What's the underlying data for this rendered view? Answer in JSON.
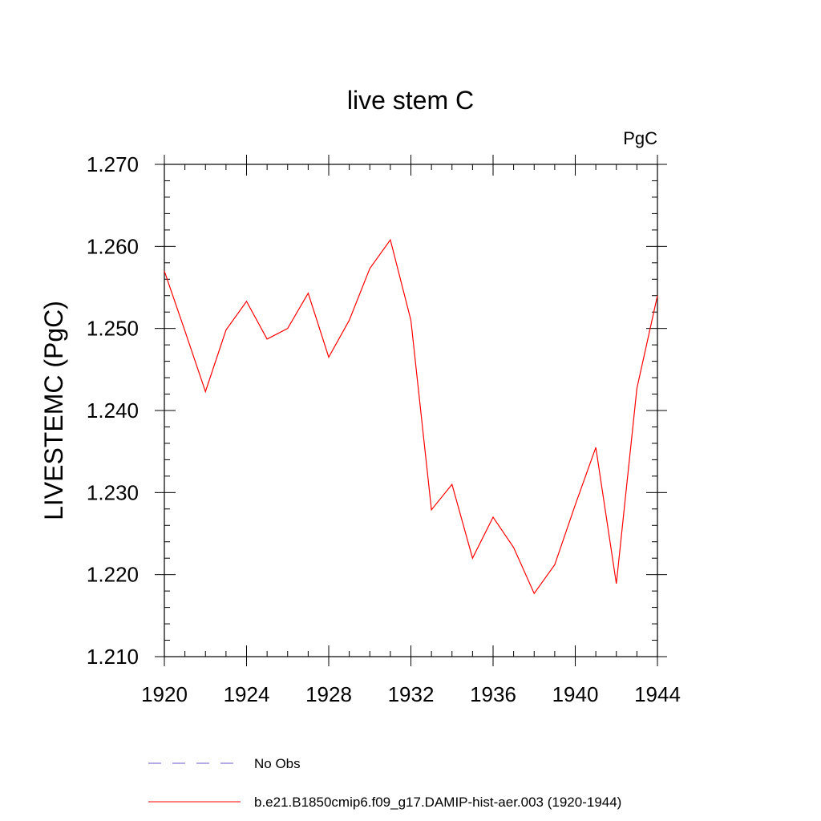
{
  "chart_data": {
    "type": "line",
    "title": "live stem C",
    "units_label": "PgC",
    "xlabel": "",
    "ylabel": "LIVESTEMC  (PgC)",
    "xlim": [
      1920,
      1944
    ],
    "ylim": [
      1.21,
      1.27
    ],
    "x_ticks": [
      "1920",
      "1924",
      "1928",
      "1932",
      "1936",
      "1940",
      "1944"
    ],
    "y_ticks": [
      "1.210",
      "1.220",
      "1.230",
      "1.240",
      "1.250",
      "1.260",
      "1.270"
    ],
    "grid": false,
    "legend_position": "bottom",
    "legend": [
      {
        "label": "No Obs",
        "style": "dashed",
        "color": "#6a5acd"
      },
      {
        "label": "b.e21.B1850cmip6.f09_g17.DAMIP-hist-aer.003 (1920-1944)",
        "style": "solid",
        "color": "#ff0000"
      }
    ],
    "series": [
      {
        "color": "#ff0000",
        "x": [
          1920,
          1921,
          1922,
          1923,
          1924,
          1925,
          1926,
          1927,
          1928,
          1929,
          1930,
          1931,
          1932,
          1933,
          1934,
          1935,
          1936,
          1937,
          1938,
          1939,
          1940,
          1941,
          1942,
          1943,
          1944
        ],
        "values": [
          1.257,
          1.2497,
          1.2423,
          1.2498,
          1.2533,
          1.2487,
          1.25,
          1.2543,
          1.2465,
          1.251,
          1.2573,
          1.2608,
          1.251,
          1.2279,
          1.231,
          1.222,
          1.227,
          1.2233,
          1.2177,
          1.2212,
          1.2285,
          1.2355,
          1.2189,
          1.2427,
          1.254
        ]
      }
    ]
  }
}
